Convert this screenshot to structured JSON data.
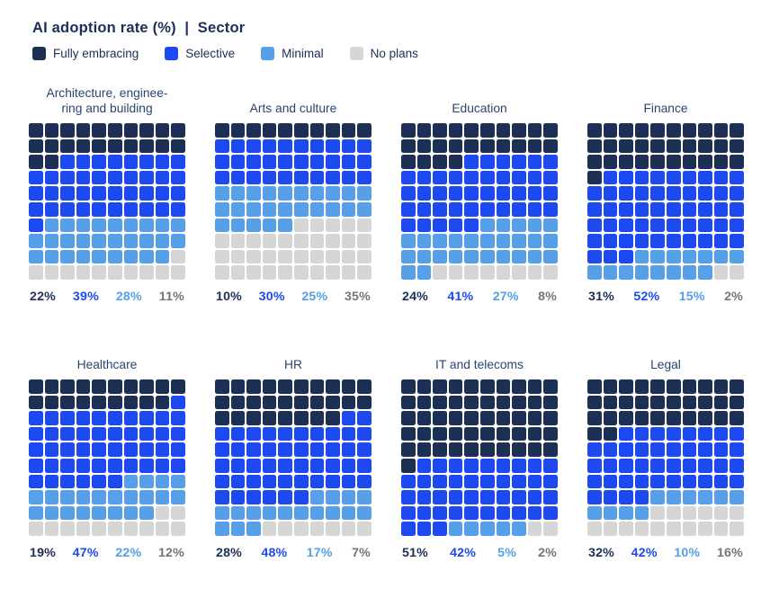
{
  "header": {
    "title": "AI adoption rate (%)  |  Sector"
  },
  "chart_data": {
    "type": "waffle",
    "title": "AI adoption rate (%) | Sector",
    "grid": {
      "rows": 10,
      "cols": 10,
      "cells": 100,
      "fill_order": "row-major-left-to-right-top-to-bottom"
    },
    "value_suffix": "%",
    "legend_position": "top-left",
    "categories": [
      {
        "label": "Fully embracing",
        "color": "#1c2f54",
        "label_color": "#1c2f54"
      },
      {
        "label": "Selective",
        "color": "#1c49f0",
        "label_color": "#1c49f0"
      },
      {
        "label": "Minimal",
        "color": "#55a0e9",
        "label_color": "#55a0e9"
      },
      {
        "label": "No plans",
        "color": "#d6d6d6",
        "label_color": "#757575"
      }
    ],
    "sectors": [
      {
        "title": "Architecture, enginee-\nring and building",
        "values": [
          22,
          39,
          28,
          11
        ]
      },
      {
        "title": "Arts and culture",
        "values": [
          10,
          30,
          25,
          35
        ]
      },
      {
        "title": "Education",
        "values": [
          24,
          41,
          27,
          8
        ]
      },
      {
        "title": "Finance",
        "values": [
          31,
          52,
          15,
          2
        ]
      },
      {
        "title": "Healthcare",
        "values": [
          19,
          47,
          22,
          12
        ]
      },
      {
        "title": "HR",
        "values": [
          28,
          48,
          17,
          7
        ]
      },
      {
        "title": "IT and telecoms",
        "values": [
          51,
          42,
          5,
          2
        ]
      },
      {
        "title": "Legal",
        "values": [
          32,
          42,
          10,
          16
        ]
      }
    ]
  }
}
